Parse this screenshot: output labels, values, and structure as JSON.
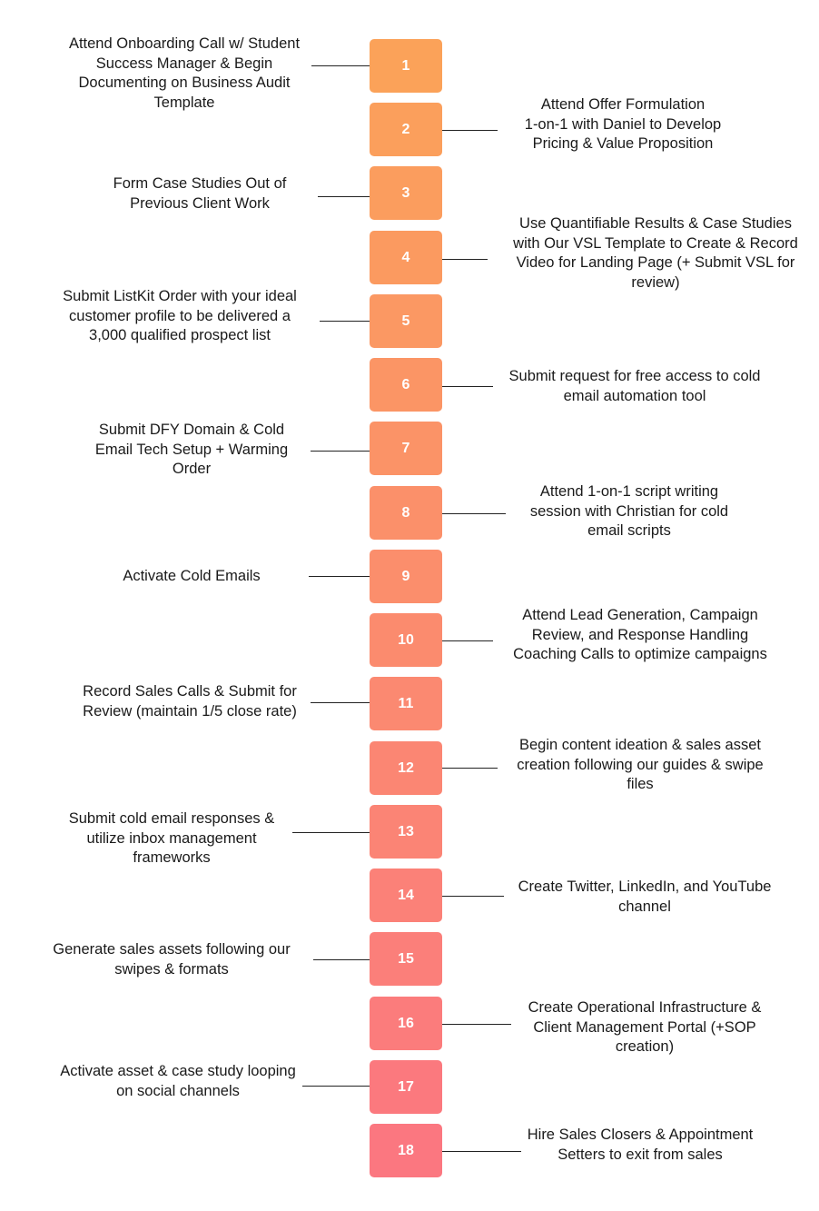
{
  "steps": [
    {
      "number": "1",
      "text": "Attend Onboarding Call w/ Student Success Manager & Begin Documenting on Business Audit Template",
      "side": "left",
      "color": "#FBA259"
    },
    {
      "number": "2",
      "text": "Attend Offer Formulation 1-on-1 with Daniel to Develop Pricing & Value Proposition",
      "side": "right",
      "color": "#FB9F5C"
    },
    {
      "number": "3",
      "text": "Form Case Studies Out of Previous Client Work",
      "side": "left",
      "color": "#FB9D5E"
    },
    {
      "number": "4",
      "text": "Use Quantifiable Results & Case Studies with Our VSL Template to Create & Record Video for Landing Page (+ Submit VSL for review)",
      "side": "right",
      "color": "#FB9A60"
    },
    {
      "number": "5",
      "text": "Submit ListKit Order with your ideal customer profile to be delivered a 3,000 qualified prospect list",
      "side": "left",
      "color": "#FB9863"
    },
    {
      "number": "6",
      "text": "Submit request for free access to cold email automation tool",
      "side": "right",
      "color": "#FB9565"
    },
    {
      "number": "7",
      "text": "Submit DFY Domain & Cold Email Tech Setup + Warming Order",
      "side": "left",
      "color": "#FB9367"
    },
    {
      "number": "8",
      "text": "Attend 1-on-1 script writing session with Christian for cold email scripts",
      "side": "right",
      "color": "#FB906A"
    },
    {
      "number": "9",
      "text": "Activate Cold Emails",
      "side": "left",
      "color": "#FB8E6C"
    },
    {
      "number": "10",
      "text": "Attend Lead Generation, Campaign Review, and Response Handling Coaching Calls to optimize campaigns",
      "side": "right",
      "color": "#FB8B6E"
    },
    {
      "number": "11",
      "text": "Record Sales Calls & Submit for Review (maintain 1/5 close rate)",
      "side": "left",
      "color": "#FB8971"
    },
    {
      "number": "12",
      "text": "Begin content ideation & sales asset creation following our guides & swipe files",
      "side": "right",
      "color": "#FB8673"
    },
    {
      "number": "13",
      "text": "Submit cold email responses & utilize inbox management frameworks",
      "side": "left",
      "color": "#FB8475"
    },
    {
      "number": "14",
      "text": "Create Twitter, LinkedIn, and YouTube channel",
      "side": "right",
      "color": "#FB8178"
    },
    {
      "number": "15",
      "text": "Generate sales assets following our swipes & formats",
      "side": "left",
      "color": "#FB7F7A"
    },
    {
      "number": "16",
      "text": "Create Operational Infrastructure & Client Management Portal (+SOP creation)",
      "side": "right",
      "color": "#FB7C7C"
    },
    {
      "number": "17",
      "text": "Activate asset & case study looping on social channels",
      "side": "left",
      "color": "#FB797E"
    },
    {
      "number": "18",
      "text": "Hire Sales Closers & Appointment Setters to exit from sales",
      "side": "right",
      "color": "#FB7780"
    }
  ]
}
